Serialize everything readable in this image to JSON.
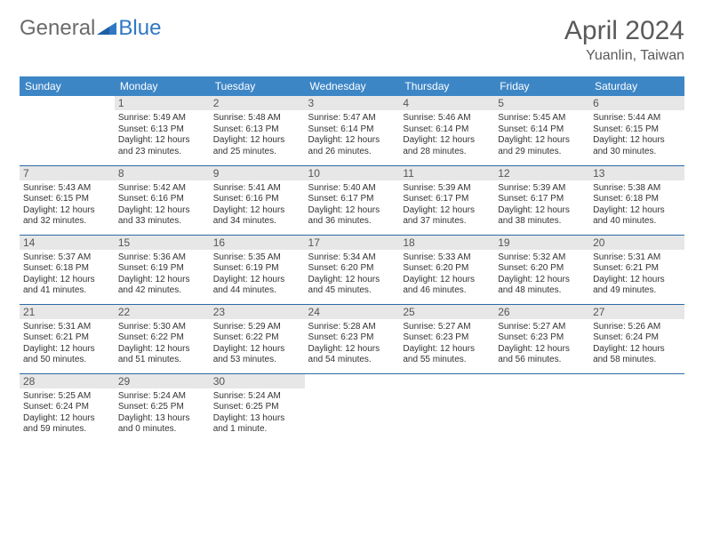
{
  "brand": {
    "part1": "General",
    "part2": "Blue"
  },
  "title": "April 2024",
  "subtitle": "Yuanlin, Taiwan",
  "colors": {
    "header_bg": "#3d86c6",
    "header_text": "#ffffff",
    "row_divider": "#2f6aa5",
    "daynum_bg": "#e7e7e7",
    "text": "#333333",
    "logo_gray": "#6b6b6b",
    "logo_blue": "#2f78c4"
  },
  "calendar": {
    "type": "table",
    "columns": [
      "Sunday",
      "Monday",
      "Tuesday",
      "Wednesday",
      "Thursday",
      "Friday",
      "Saturday"
    ],
    "start_offset": 1,
    "days": [
      {
        "n": 1,
        "sunrise": "5:49 AM",
        "sunset": "6:13 PM",
        "daylight": "12 hours and 23 minutes."
      },
      {
        "n": 2,
        "sunrise": "5:48 AM",
        "sunset": "6:13 PM",
        "daylight": "12 hours and 25 minutes."
      },
      {
        "n": 3,
        "sunrise": "5:47 AM",
        "sunset": "6:14 PM",
        "daylight": "12 hours and 26 minutes."
      },
      {
        "n": 4,
        "sunrise": "5:46 AM",
        "sunset": "6:14 PM",
        "daylight": "12 hours and 28 minutes."
      },
      {
        "n": 5,
        "sunrise": "5:45 AM",
        "sunset": "6:14 PM",
        "daylight": "12 hours and 29 minutes."
      },
      {
        "n": 6,
        "sunrise": "5:44 AM",
        "sunset": "6:15 PM",
        "daylight": "12 hours and 30 minutes."
      },
      {
        "n": 7,
        "sunrise": "5:43 AM",
        "sunset": "6:15 PM",
        "daylight": "12 hours and 32 minutes."
      },
      {
        "n": 8,
        "sunrise": "5:42 AM",
        "sunset": "6:16 PM",
        "daylight": "12 hours and 33 minutes."
      },
      {
        "n": 9,
        "sunrise": "5:41 AM",
        "sunset": "6:16 PM",
        "daylight": "12 hours and 34 minutes."
      },
      {
        "n": 10,
        "sunrise": "5:40 AM",
        "sunset": "6:17 PM",
        "daylight": "12 hours and 36 minutes."
      },
      {
        "n": 11,
        "sunrise": "5:39 AM",
        "sunset": "6:17 PM",
        "daylight": "12 hours and 37 minutes."
      },
      {
        "n": 12,
        "sunrise": "5:39 AM",
        "sunset": "6:17 PM",
        "daylight": "12 hours and 38 minutes."
      },
      {
        "n": 13,
        "sunrise": "5:38 AM",
        "sunset": "6:18 PM",
        "daylight": "12 hours and 40 minutes."
      },
      {
        "n": 14,
        "sunrise": "5:37 AM",
        "sunset": "6:18 PM",
        "daylight": "12 hours and 41 minutes."
      },
      {
        "n": 15,
        "sunrise": "5:36 AM",
        "sunset": "6:19 PM",
        "daylight": "12 hours and 42 minutes."
      },
      {
        "n": 16,
        "sunrise": "5:35 AM",
        "sunset": "6:19 PM",
        "daylight": "12 hours and 44 minutes."
      },
      {
        "n": 17,
        "sunrise": "5:34 AM",
        "sunset": "6:20 PM",
        "daylight": "12 hours and 45 minutes."
      },
      {
        "n": 18,
        "sunrise": "5:33 AM",
        "sunset": "6:20 PM",
        "daylight": "12 hours and 46 minutes."
      },
      {
        "n": 19,
        "sunrise": "5:32 AM",
        "sunset": "6:20 PM",
        "daylight": "12 hours and 48 minutes."
      },
      {
        "n": 20,
        "sunrise": "5:31 AM",
        "sunset": "6:21 PM",
        "daylight": "12 hours and 49 minutes."
      },
      {
        "n": 21,
        "sunrise": "5:31 AM",
        "sunset": "6:21 PM",
        "daylight": "12 hours and 50 minutes."
      },
      {
        "n": 22,
        "sunrise": "5:30 AM",
        "sunset": "6:22 PM",
        "daylight": "12 hours and 51 minutes."
      },
      {
        "n": 23,
        "sunrise": "5:29 AM",
        "sunset": "6:22 PM",
        "daylight": "12 hours and 53 minutes."
      },
      {
        "n": 24,
        "sunrise": "5:28 AM",
        "sunset": "6:23 PM",
        "daylight": "12 hours and 54 minutes."
      },
      {
        "n": 25,
        "sunrise": "5:27 AM",
        "sunset": "6:23 PM",
        "daylight": "12 hours and 55 minutes."
      },
      {
        "n": 26,
        "sunrise": "5:27 AM",
        "sunset": "6:23 PM",
        "daylight": "12 hours and 56 minutes."
      },
      {
        "n": 27,
        "sunrise": "5:26 AM",
        "sunset": "6:24 PM",
        "daylight": "12 hours and 58 minutes."
      },
      {
        "n": 28,
        "sunrise": "5:25 AM",
        "sunset": "6:24 PM",
        "daylight": "12 hours and 59 minutes."
      },
      {
        "n": 29,
        "sunrise": "5:24 AM",
        "sunset": "6:25 PM",
        "daylight": "13 hours and 0 minutes."
      },
      {
        "n": 30,
        "sunrise": "5:24 AM",
        "sunset": "6:25 PM",
        "daylight": "13 hours and 1 minute."
      }
    ],
    "labels": {
      "sunrise": "Sunrise:",
      "sunset": "Sunset:",
      "daylight": "Daylight:"
    }
  }
}
